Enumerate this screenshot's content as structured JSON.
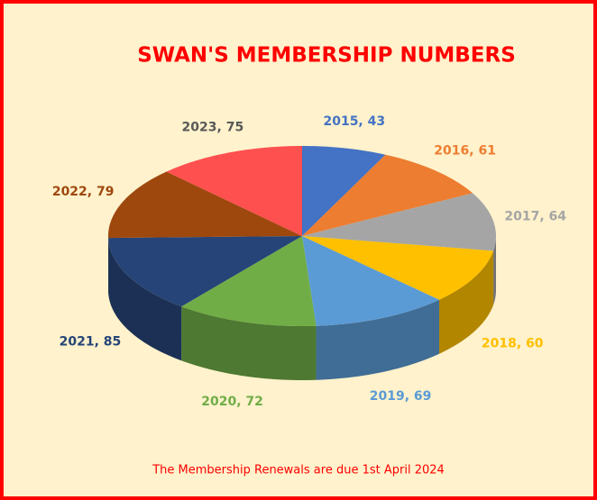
{
  "chart_data": {
    "type": "pie",
    "title": "SWAN'S MEMBERSHIP NUMBERS",
    "footnote": "The Membership Renewals are due 1st April 2024",
    "values": [
      43,
      61,
      64,
      60,
      69,
      72,
      85,
      79,
      75
    ],
    "value_labels": [
      "2015, 43",
      "2016, 61",
      "2017, 64",
      "2018, 60",
      "2019, 69",
      "2020, 72",
      "2021, 85",
      "2022, 79",
      "2023, 75"
    ],
    "colors": [
      "#4472c4",
      "#ed7d31",
      "#a5a5a5",
      "#ffc000",
      "#5b9bd5",
      "#70ad47",
      "#264478",
      "#9e480e",
      "#ff5050"
    ],
    "label_colors": [
      "#4472c4",
      "#ed7d31",
      "#a5a5a5",
      "#ffc000",
      "#5b9bd5",
      "#70ad47",
      "#264478",
      "#9e480e",
      "#595959"
    ]
  }
}
